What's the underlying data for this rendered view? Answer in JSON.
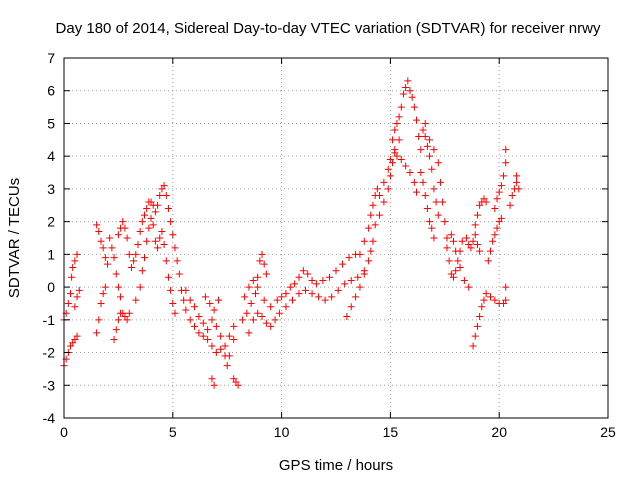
{
  "chart_data": {
    "type": "scatter",
    "title": "Day 180 of 2014, Sidereal Day-to-day VTEC variation (SDTVAR) for receiver nrwy",
    "xlabel": "GPS time / hours",
    "ylabel": "SDTVAR / TECUs",
    "xlim": [
      0,
      25
    ],
    "ylim": [
      -4,
      7
    ],
    "xticks": [
      "0",
      "5",
      "10",
      "15",
      "20",
      "25"
    ],
    "yticks": [
      "-4",
      "-3",
      "-2",
      "-1",
      "0",
      "1",
      "2",
      "3",
      "4",
      "5",
      "6",
      "7"
    ],
    "grid": true,
    "marker": "+",
    "marker_color": "#ff0000",
    "series": [
      {
        "name": "main",
        "points": [
          [
            0.0,
            -2.4
          ],
          [
            0.1,
            -2.2
          ],
          [
            0.2,
            -2.0
          ],
          [
            0.3,
            -1.8
          ],
          [
            0.4,
            -1.7
          ],
          [
            0.5,
            -1.6
          ],
          [
            0.6,
            -1.5
          ],
          [
            0.0,
            -1.0
          ],
          [
            0.1,
            -0.8
          ],
          [
            0.2,
            -0.5
          ],
          [
            0.3,
            -0.2
          ],
          [
            0.35,
            0.3
          ],
          [
            0.4,
            0.6
          ],
          [
            0.5,
            0.8
          ],
          [
            0.6,
            1.0
          ],
          [
            0.5,
            -0.6
          ],
          [
            0.6,
            -0.3
          ],
          [
            0.7,
            -0.1
          ],
          [
            1.5,
            -1.4
          ],
          [
            1.6,
            -1.0
          ],
          [
            1.7,
            -0.5
          ],
          [
            1.8,
            -0.2
          ],
          [
            1.9,
            0.0
          ],
          [
            1.5,
            1.9
          ],
          [
            1.6,
            1.7
          ],
          [
            1.7,
            1.4
          ],
          [
            1.8,
            1.2
          ],
          [
            1.9,
            0.9
          ],
          [
            2.0,
            0.7
          ],
          [
            2.1,
            1.5
          ],
          [
            2.2,
            1.2
          ],
          [
            2.3,
            0.9
          ],
          [
            2.4,
            0.4
          ],
          [
            2.5,
            0.0
          ],
          [
            2.6,
            -0.3
          ],
          [
            2.3,
            -1.6
          ],
          [
            2.4,
            -1.3
          ],
          [
            2.5,
            -1.0
          ],
          [
            2.6,
            -0.8
          ],
          [
            2.7,
            -0.8
          ],
          [
            2.8,
            -0.9
          ],
          [
            2.9,
            -1.0
          ],
          [
            3.0,
            -0.8
          ],
          [
            2.5,
            1.6
          ],
          [
            2.6,
            1.8
          ],
          [
            2.7,
            2.0
          ],
          [
            2.8,
            1.8
          ],
          [
            2.9,
            1.5
          ],
          [
            3.0,
            1.0
          ],
          [
            3.1,
            0.6
          ],
          [
            3.2,
            0.8
          ],
          [
            3.3,
            1.0
          ],
          [
            3.4,
            1.3
          ],
          [
            3.5,
            1.7
          ],
          [
            3.6,
            2.0
          ],
          [
            3.7,
            2.2
          ],
          [
            3.8,
            2.4
          ],
          [
            3.9,
            2.6
          ],
          [
            4.0,
            2.6
          ],
          [
            4.1,
            2.5
          ],
          [
            4.2,
            2.3
          ],
          [
            4.3,
            2.5
          ],
          [
            4.4,
            2.8
          ],
          [
            4.5,
            3.0
          ],
          [
            4.6,
            3.1
          ],
          [
            4.7,
            2.8
          ],
          [
            4.8,
            2.4
          ],
          [
            4.9,
            2.0
          ],
          [
            5.0,
            1.6
          ],
          [
            5.1,
            1.2
          ],
          [
            5.2,
            0.8
          ],
          [
            5.3,
            0.4
          ],
          [
            5.4,
            -0.1
          ],
          [
            3.8,
            1.4
          ],
          [
            3.9,
            1.8
          ],
          [
            4.0,
            2.1
          ],
          [
            4.1,
            1.9
          ],
          [
            4.2,
            1.4
          ],
          [
            4.3,
            1.2
          ],
          [
            4.4,
            1.5
          ],
          [
            4.5,
            1.7
          ],
          [
            4.6,
            1.3
          ],
          [
            4.7,
            0.8
          ],
          [
            4.8,
            0.3
          ],
          [
            4.9,
            -0.1
          ],
          [
            5.0,
            -0.5
          ],
          [
            5.1,
            -0.8
          ],
          [
            3.3,
            -0.4
          ],
          [
            3.5,
            0.0
          ],
          [
            3.6,
            0.5
          ],
          [
            3.7,
            0.9
          ],
          [
            5.5,
            -0.4
          ],
          [
            5.6,
            -0.7
          ],
          [
            5.8,
            -1.0
          ],
          [
            6.0,
            -1.2
          ],
          [
            6.2,
            -1.4
          ],
          [
            6.4,
            -1.5
          ],
          [
            6.6,
            -1.6
          ],
          [
            6.8,
            -1.8
          ],
          [
            7.0,
            -2.0
          ],
          [
            7.2,
            -1.9
          ],
          [
            7.4,
            -1.8
          ],
          [
            7.6,
            -1.5
          ],
          [
            7.8,
            -1.2
          ],
          [
            5.6,
            -0.1
          ],
          [
            5.8,
            -0.4
          ],
          [
            6.0,
            -0.6
          ],
          [
            6.2,
            -0.9
          ],
          [
            6.4,
            -1.1
          ],
          [
            6.6,
            -1.3
          ],
          [
            6.8,
            -1.0
          ],
          [
            7.0,
            -1.2
          ],
          [
            7.2,
            -1.5
          ],
          [
            7.4,
            -2.1
          ],
          [
            7.5,
            -2.4
          ],
          [
            7.6,
            -2.1
          ],
          [
            7.8,
            -1.6
          ],
          [
            6.5,
            -0.3
          ],
          [
            6.7,
            -0.5
          ],
          [
            6.9,
            -0.7
          ],
          [
            7.1,
            -0.4
          ],
          [
            6.8,
            -2.8
          ],
          [
            6.9,
            -3.0
          ],
          [
            7.8,
            -2.8
          ],
          [
            7.9,
            -2.9
          ],
          [
            8.0,
            -3.0
          ],
          [
            8.2,
            -1.0
          ],
          [
            8.4,
            -0.8
          ],
          [
            8.6,
            -0.5
          ],
          [
            8.8,
            -0.2
          ],
          [
            8.9,
            0.3
          ],
          [
            9.0,
            0.8
          ],
          [
            9.1,
            1.0
          ],
          [
            9.2,
            0.7
          ],
          [
            9.3,
            0.4
          ],
          [
            8.5,
            -1.4
          ],
          [
            8.7,
            -1.0
          ],
          [
            8.9,
            -0.8
          ],
          [
            9.1,
            -0.9
          ],
          [
            9.3,
            -1.1
          ],
          [
            9.5,
            -1.2
          ],
          [
            9.7,
            -1.0
          ],
          [
            9.9,
            -0.8
          ],
          [
            8.3,
            -0.3
          ],
          [
            8.5,
            0.0
          ],
          [
            8.7,
            0.2
          ],
          [
            8.9,
            0.0
          ],
          [
            9.2,
            -0.4
          ],
          [
            9.5,
            -0.6
          ],
          [
            9.8,
            -0.4
          ],
          [
            10.0,
            -0.3
          ],
          [
            10.2,
            -0.2
          ],
          [
            10.4,
            0.0
          ],
          [
            10.6,
            0.1
          ],
          [
            10.8,
            0.3
          ],
          [
            11.0,
            0.5
          ],
          [
            11.2,
            0.4
          ],
          [
            11.4,
            0.2
          ],
          [
            10.2,
            -0.6
          ],
          [
            10.5,
            -0.4
          ],
          [
            10.8,
            -0.2
          ],
          [
            11.1,
            -0.1
          ],
          [
            11.4,
            -0.2
          ],
          [
            11.7,
            -0.3
          ],
          [
            12.0,
            -0.4
          ],
          [
            11.6,
            0.1
          ],
          [
            11.9,
            0.2
          ],
          [
            12.2,
            0.3
          ],
          [
            12.5,
            0.5
          ],
          [
            12.8,
            0.7
          ],
          [
            13.1,
            0.9
          ],
          [
            13.4,
            1.0
          ],
          [
            12.3,
            -0.3
          ],
          [
            12.6,
            -0.1
          ],
          [
            12.9,
            0.1
          ],
          [
            13.2,
            0.2
          ],
          [
            13.5,
            0.3
          ],
          [
            13.8,
            0.5
          ],
          [
            13.0,
            -0.9
          ],
          [
            13.2,
            -0.6
          ],
          [
            13.4,
            -0.3
          ],
          [
            13.6,
            0.0
          ],
          [
            13.8,
            0.4
          ],
          [
            14.0,
            0.8
          ],
          [
            14.1,
            1.1
          ],
          [
            14.2,
            1.4
          ],
          [
            13.6,
            1.0
          ],
          [
            13.8,
            1.4
          ],
          [
            14.0,
            1.8
          ],
          [
            14.1,
            2.2
          ],
          [
            14.2,
            2.5
          ],
          [
            14.3,
            2.8
          ],
          [
            14.4,
            3.0
          ],
          [
            14.3,
            1.9
          ],
          [
            14.5,
            2.2
          ],
          [
            14.7,
            2.6
          ],
          [
            14.9,
            3.0
          ],
          [
            15.0,
            3.4
          ],
          [
            15.1,
            3.8
          ],
          [
            15.2,
            4.1
          ],
          [
            14.5,
            2.8
          ],
          [
            14.7,
            3.2
          ],
          [
            14.9,
            3.6
          ],
          [
            15.0,
            3.9
          ],
          [
            15.2,
            4.2
          ],
          [
            15.4,
            4.5
          ],
          [
            15.1,
            4.5
          ],
          [
            15.2,
            4.8
          ],
          [
            15.3,
            5.0
          ],
          [
            15.4,
            5.2
          ],
          [
            15.5,
            5.5
          ],
          [
            15.6,
            5.9
          ],
          [
            15.7,
            6.1
          ],
          [
            15.8,
            6.3
          ],
          [
            15.9,
            6.0
          ],
          [
            16.0,
            5.8
          ],
          [
            16.1,
            5.5
          ],
          [
            16.2,
            5.1
          ],
          [
            16.3,
            4.6
          ],
          [
            16.4,
            4.2
          ],
          [
            15.3,
            4.0
          ],
          [
            15.5,
            3.9
          ],
          [
            15.7,
            3.7
          ],
          [
            15.9,
            3.5
          ],
          [
            16.1,
            3.2
          ],
          [
            16.2,
            2.9
          ],
          [
            16.5,
            4.8
          ],
          [
            16.6,
            4.6
          ],
          [
            16.7,
            4.3
          ],
          [
            16.8,
            4.0
          ],
          [
            16.9,
            3.6
          ],
          [
            17.0,
            3.0
          ],
          [
            17.1,
            2.6
          ],
          [
            17.2,
            2.2
          ],
          [
            16.4,
            3.5
          ],
          [
            16.5,
            3.2
          ],
          [
            16.6,
            2.8
          ],
          [
            16.7,
            2.4
          ],
          [
            16.8,
            2.0
          ],
          [
            16.9,
            1.8
          ],
          [
            17.0,
            1.5
          ],
          [
            16.6,
            5.0
          ],
          [
            16.8,
            4.5
          ],
          [
            17.0,
            4.2
          ],
          [
            17.2,
            3.8
          ],
          [
            17.3,
            3.2
          ],
          [
            17.4,
            2.6
          ],
          [
            17.5,
            2.0
          ],
          [
            17.6,
            1.5
          ],
          [
            17.6,
            1.2
          ],
          [
            17.7,
            0.8
          ],
          [
            17.8,
            0.4
          ],
          [
            17.9,
            0.3
          ],
          [
            18.0,
            0.5
          ],
          [
            18.1,
            0.8
          ],
          [
            18.2,
            1.1
          ],
          [
            18.3,
            1.4
          ],
          [
            17.8,
            1.6
          ],
          [
            17.9,
            1.4
          ],
          [
            18.0,
            1.1
          ],
          [
            18.2,
            0.6
          ],
          [
            18.4,
            0.2
          ],
          [
            18.6,
            0.0
          ],
          [
            18.5,
            1.5
          ],
          [
            18.6,
            1.3
          ],
          [
            18.7,
            1.2
          ],
          [
            18.8,
            1.4
          ],
          [
            18.9,
            1.6
          ],
          [
            19.0,
            1.3
          ],
          [
            19.1,
            1.1
          ],
          [
            18.8,
            -1.8
          ],
          [
            18.9,
            -1.5
          ],
          [
            19.0,
            -1.2
          ],
          [
            19.1,
            -0.9
          ],
          [
            19.2,
            -0.6
          ],
          [
            19.3,
            -0.4
          ],
          [
            19.4,
            -0.2
          ],
          [
            18.9,
            1.9
          ],
          [
            19.0,
            2.2
          ],
          [
            19.1,
            2.5
          ],
          [
            19.2,
            2.6
          ],
          [
            19.3,
            2.7
          ],
          [
            19.4,
            2.6
          ],
          [
            19.5,
            0.8
          ],
          [
            19.6,
            1.1
          ],
          [
            19.7,
            1.4
          ],
          [
            19.8,
            1.6
          ],
          [
            19.9,
            1.8
          ],
          [
            20.0,
            2.0
          ],
          [
            20.1,
            2.1
          ],
          [
            19.6,
            -0.3
          ],
          [
            19.8,
            -0.4
          ],
          [
            20.0,
            -0.5
          ],
          [
            20.2,
            -0.5
          ],
          [
            20.3,
            -0.4
          ],
          [
            20.3,
            0.0
          ],
          [
            19.8,
            2.4
          ],
          [
            19.9,
            2.7
          ],
          [
            20.0,
            2.9
          ],
          [
            20.1,
            3.1
          ],
          [
            20.2,
            3.4
          ],
          [
            20.3,
            3.8
          ],
          [
            20.3,
            4.2
          ],
          [
            20.5,
            2.5
          ],
          [
            20.6,
            2.8
          ],
          [
            20.7,
            3.0
          ],
          [
            20.8,
            3.2
          ],
          [
            20.9,
            3.0
          ],
          [
            20.8,
            3.4
          ]
        ]
      }
    ]
  }
}
